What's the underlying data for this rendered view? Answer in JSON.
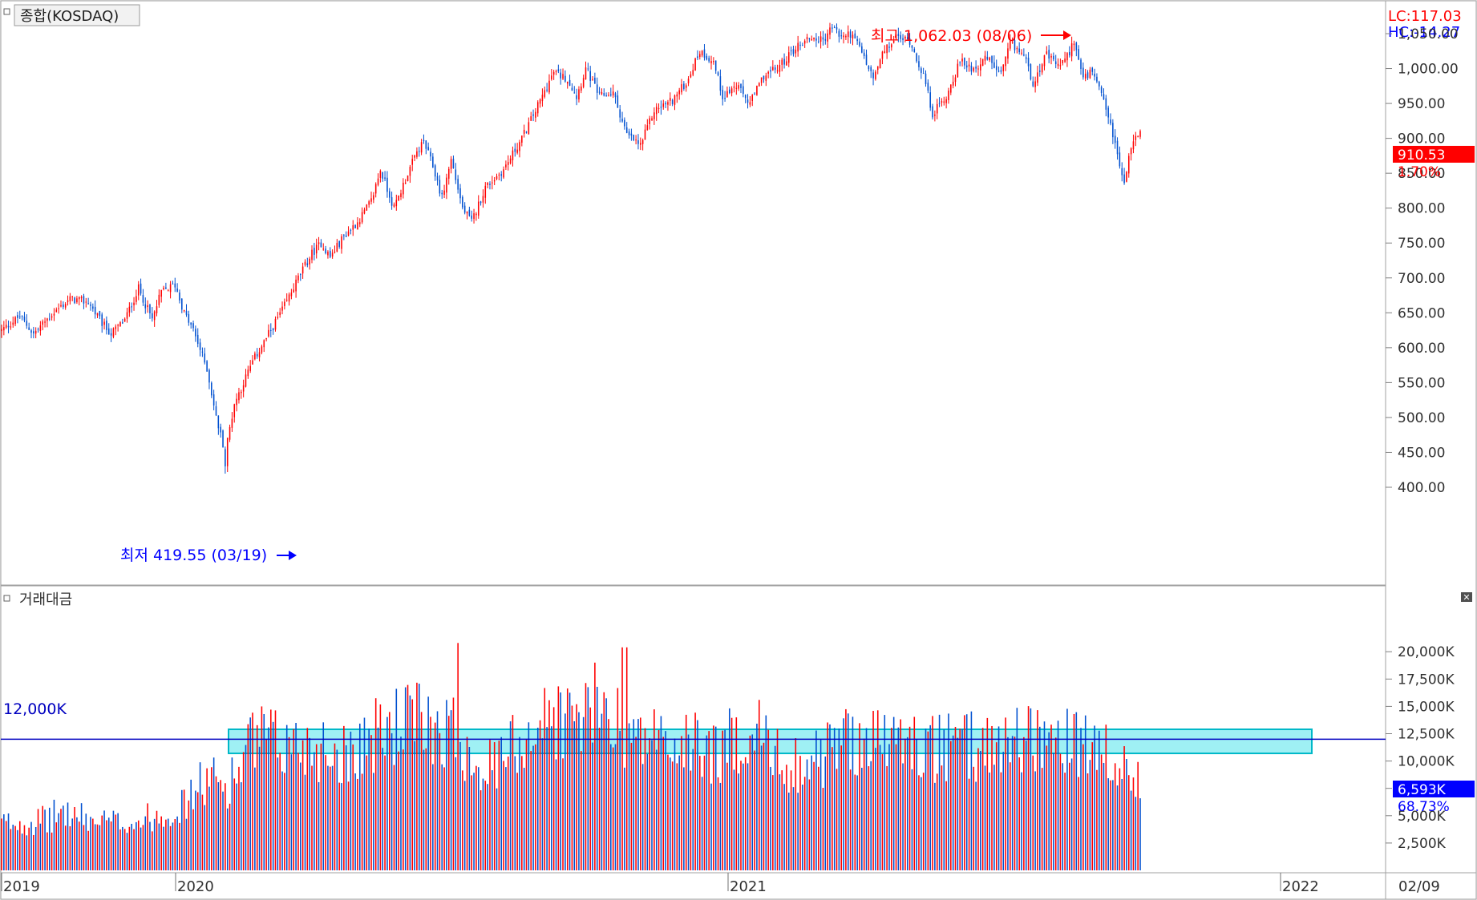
{
  "panels": {
    "price_title": "종합(KOSDAQ)",
    "volume_title": "거래대금"
  },
  "corner": {
    "lc": "LC:117.03",
    "hc": "HC:-14.27"
  },
  "current": {
    "price_label": "910.53",
    "change_label": "1.70%",
    "volume_label": "6,593K",
    "volume_ratio_label": "68.73%"
  },
  "annotations": {
    "high_label": "최고 1,062.03 (08/06)",
    "low_label": "최저 419.55 (03/19)",
    "volume_line_label": "12,000K"
  },
  "x_axis": {
    "labels": [
      "2019",
      "2020",
      "2021",
      "2022"
    ],
    "right_label": "02/09"
  },
  "colors": {
    "up": "#ff0000",
    "down": "#0050d0",
    "high_text": "#ff0000",
    "low_text": "#0000ff",
    "ref_line": "#0000c0",
    "highlight_fill": "#9ff0f4",
    "highlight_stroke": "#00b8c8",
    "axis_text": "#303030",
    "border": "#a0a0a0",
    "panel_bg": "#ffffff",
    "frame_bg": "#f0f0f0"
  },
  "chart_data": [
    {
      "type": "candlestick",
      "title": "종합(KOSDAQ)",
      "yticks": [
        "400.00",
        "450.00",
        "500.00",
        "550.00",
        "600.00",
        "650.00",
        "700.00",
        "750.00",
        "800.00",
        "850.00",
        "900.00",
        "950.00",
        "1,000.00",
        "1,050.00"
      ],
      "ylim": [
        400,
        1050
      ],
      "high": {
        "value": 1062.03,
        "date": "08/06"
      },
      "low": {
        "value": 419.55,
        "date": "03/19"
      },
      "last": 910.53,
      "anchors": [
        [
          0,
          625
        ],
        [
          8,
          645
        ],
        [
          14,
          620
        ],
        [
          22,
          648
        ],
        [
          30,
          670
        ],
        [
          38,
          665
        ],
        [
          44,
          635
        ],
        [
          48,
          620
        ],
        [
          54,
          640
        ],
        [
          60,
          685
        ],
        [
          66,
          640
        ],
        [
          70,
          680
        ],
        [
          76,
          690
        ],
        [
          80,
          650
        ],
        [
          84,
          625
        ],
        [
          90,
          570
        ],
        [
          94,
          500
        ],
        [
          98,
          450
        ],
        [
          102,
          520
        ],
        [
          110,
          580
        ],
        [
          118,
          625
        ],
        [
          124,
          660
        ],
        [
          130,
          700
        ],
        [
          136,
          735
        ],
        [
          140,
          750
        ],
        [
          144,
          730
        ],
        [
          150,
          760
        ],
        [
          156,
          780
        ],
        [
          162,
          810
        ],
        [
          166,
          855
        ],
        [
          172,
          800
        ],
        [
          178,
          850
        ],
        [
          182,
          880
        ],
        [
          185,
          895
        ],
        [
          189,
          860
        ],
        [
          193,
          815
        ],
        [
          197,
          870
        ],
        [
          202,
          800
        ],
        [
          206,
          780
        ],
        [
          212,
          830
        ],
        [
          220,
          855
        ],
        [
          228,
          900
        ],
        [
          234,
          940
        ],
        [
          242,
          995
        ],
        [
          248,
          985
        ],
        [
          252,
          960
        ],
        [
          256,
          1000
        ],
        [
          262,
          960
        ],
        [
          268,
          965
        ],
        [
          274,
          905
        ],
        [
          280,
          890
        ],
        [
          286,
          940
        ],
        [
          294,
          955
        ],
        [
          300,
          980
        ],
        [
          306,
          1025
        ],
        [
          312,
          1010
        ],
        [
          316,
          960
        ],
        [
          322,
          975
        ],
        [
          328,
          950
        ],
        [
          334,
          990
        ],
        [
          340,
          1000
        ],
        [
          348,
          1030
        ],
        [
          354,
          1045
        ],
        [
          360,
          1040
        ],
        [
          364,
          1060
        ],
        [
          368,
          1045
        ],
        [
          372,
          1050
        ],
        [
          376,
          1030
        ],
        [
          382,
          985
        ],
        [
          386,
          1020
        ],
        [
          392,
          1045
        ],
        [
          398,
          1040
        ],
        [
          404,
          990
        ],
        [
          408,
          935
        ],
        [
          414,
          960
        ],
        [
          420,
          1010
        ],
        [
          426,
          1000
        ],
        [
          432,
          1015
        ],
        [
          438,
          990
        ],
        [
          442,
          1035
        ],
        [
          448,
          1020
        ],
        [
          452,
          980
        ],
        [
          458,
          1020
        ],
        [
          462,
          1005
        ],
        [
          466,
          1010
        ],
        [
          470,
          1040
        ],
        [
          474,
          985
        ],
        [
          478,
          995
        ],
        [
          482,
          960
        ],
        [
          486,
          920
        ],
        [
          490,
          860
        ],
        [
          492,
          835
        ],
        [
          495,
          890
        ],
        [
          499,
          910
        ]
      ]
    },
    {
      "type": "bar",
      "title": "거래대금",
      "yticks": [
        "2,500K",
        "5,000K",
        "7,500K",
        "10,000K",
        "12,500K",
        "15,000K",
        "17,500K",
        "20,000K"
      ],
      "ylim": [
        0,
        21000
      ],
      "reference_line": 12000,
      "last": 6593,
      "anchors": [
        [
          0,
          4200
        ],
        [
          20,
          4500
        ],
        [
          26,
          5300
        ],
        [
          32,
          4900
        ],
        [
          40,
          4400
        ],
        [
          50,
          4300
        ],
        [
          60,
          4400
        ],
        [
          70,
          5100
        ],
        [
          80,
          5800
        ],
        [
          86,
          7500
        ],
        [
          92,
          8200
        ],
        [
          98,
          7500
        ],
        [
          104,
          9000
        ],
        [
          110,
          11500
        ],
        [
          116,
          11800
        ],
        [
          122,
          11000
        ],
        [
          130,
          11500
        ],
        [
          136,
          11200
        ],
        [
          142,
          11000
        ],
        [
          150,
          10500
        ],
        [
          156,
          11500
        ],
        [
          162,
          11800
        ],
        [
          170,
          12800
        ],
        [
          178,
          13500
        ],
        [
          186,
          13200
        ],
        [
          192,
          13000
        ],
        [
          200,
          12200
        ],
        [
          206,
          10500
        ],
        [
          212,
          9200
        ],
        [
          218,
          9500
        ],
        [
          222,
          10800
        ],
        [
          228,
          12000
        ],
        [
          236,
          13200
        ],
        [
          244,
          13800
        ],
        [
          252,
          13500
        ],
        [
          260,
          14500
        ],
        [
          268,
          14200
        ],
        [
          274,
          12800
        ],
        [
          280,
          11500
        ],
        [
          286,
          12200
        ],
        [
          292,
          11200
        ],
        [
          300,
          11000
        ],
        [
          306,
          11500
        ],
        [
          312,
          10500
        ],
        [
          318,
          11000
        ],
        [
          322,
          12000
        ],
        [
          328,
          12500
        ],
        [
          334,
          12200
        ],
        [
          338,
          10000
        ],
        [
          346,
          9700
        ],
        [
          352,
          9600
        ],
        [
          358,
          10000
        ],
        [
          364,
          11000
        ],
        [
          372,
          12000
        ],
        [
          378,
          11800
        ],
        [
          386,
          11500
        ],
        [
          392,
          11800
        ],
        [
          398,
          11200
        ],
        [
          404,
          11000
        ],
        [
          412,
          10800
        ],
        [
          420,
          11000
        ],
        [
          428,
          11200
        ],
        [
          436,
          11500
        ],
        [
          444,
          11800
        ],
        [
          450,
          12500
        ],
        [
          456,
          11800
        ],
        [
          462,
          11500
        ],
        [
          468,
          11200
        ],
        [
          474,
          11000
        ],
        [
          480,
          10500
        ],
        [
          484,
          10200
        ],
        [
          488,
          8500
        ],
        [
          494,
          8800
        ],
        [
          499,
          9000
        ]
      ]
    }
  ]
}
